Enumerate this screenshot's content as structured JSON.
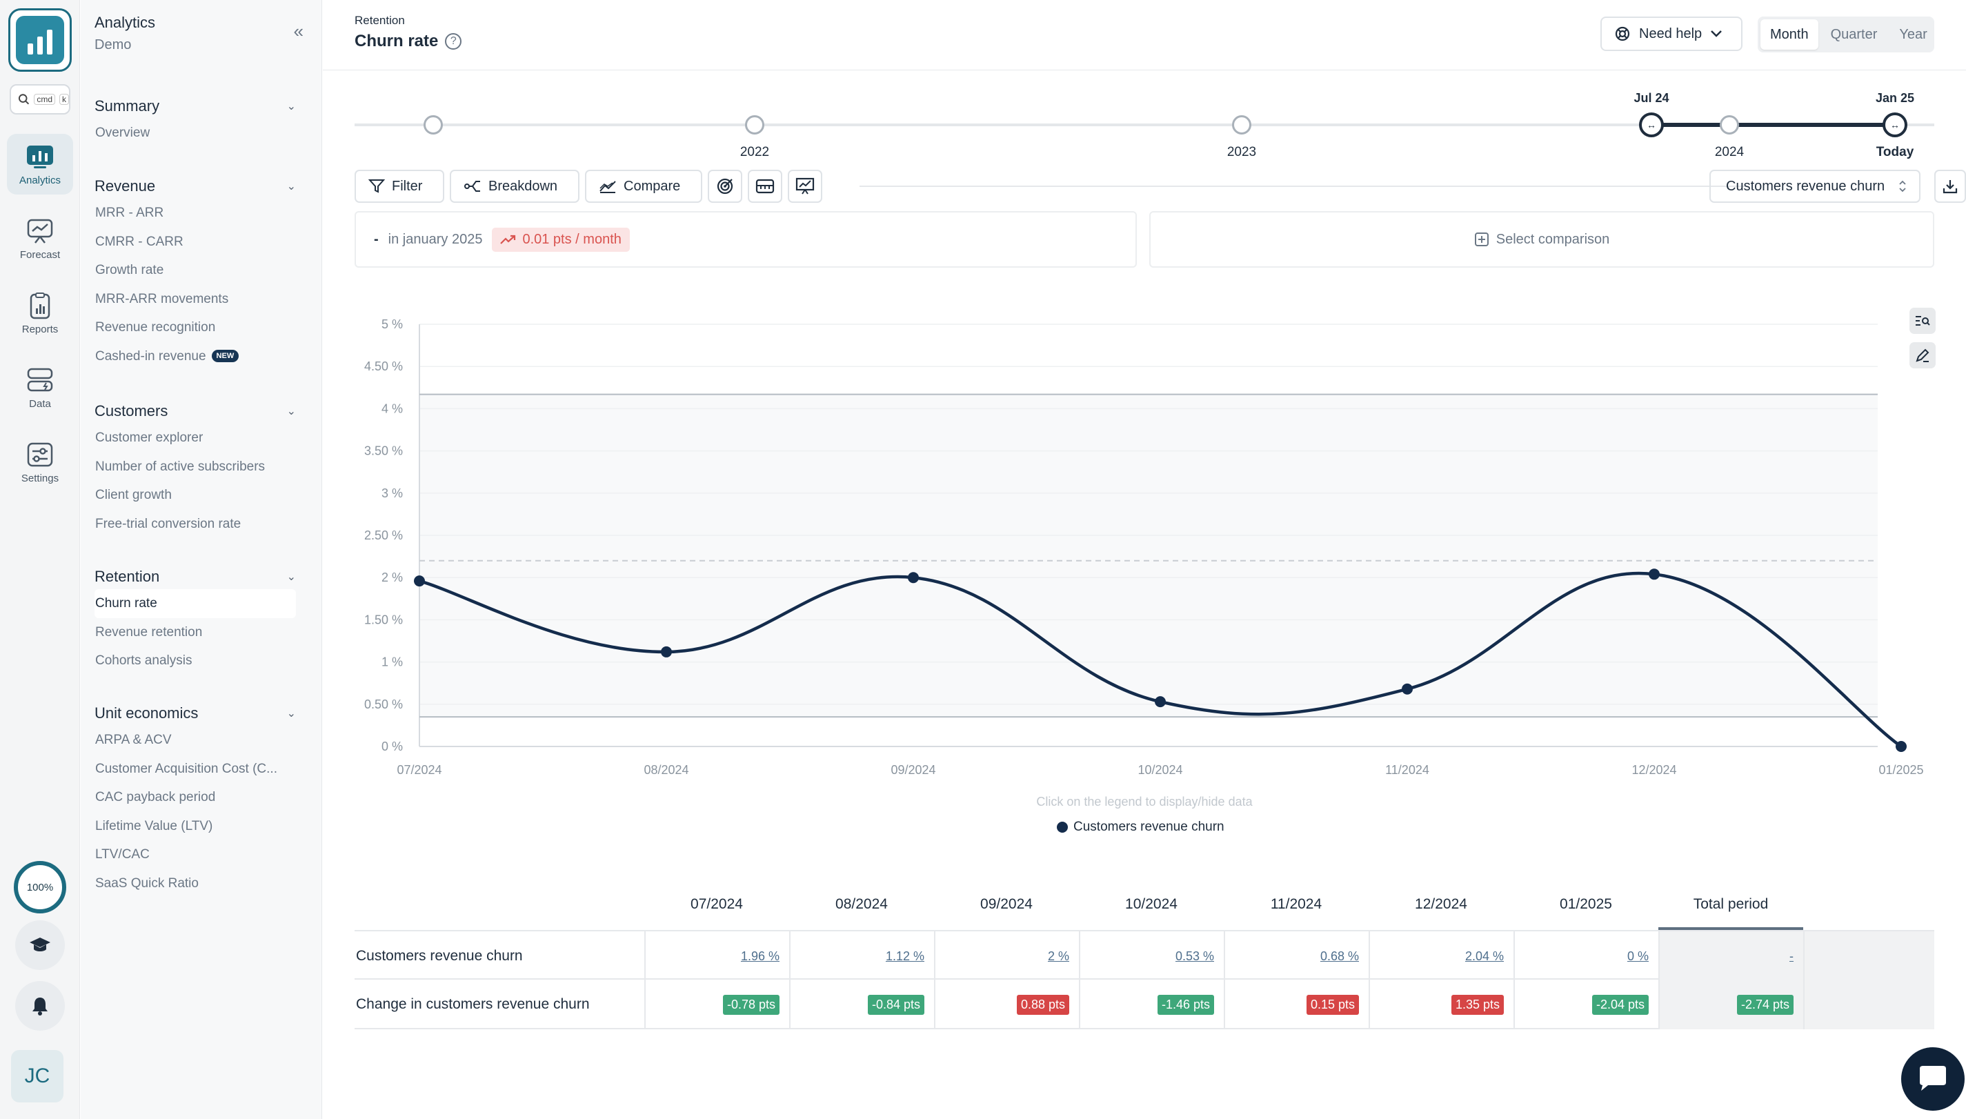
{
  "app": {
    "name": "Analytics",
    "workspace": "Demo",
    "search_shortcut": "cmd",
    "search_key": "k"
  },
  "rail": {
    "items": [
      {
        "label": "Analytics",
        "icon": "analytics-icon"
      },
      {
        "label": "Forecast",
        "icon": "forecast-icon"
      },
      {
        "label": "Reports",
        "icon": "reports-icon"
      },
      {
        "label": "Data",
        "icon": "data-icon"
      },
      {
        "label": "Settings",
        "icon": "settings-icon"
      }
    ],
    "progress": "100%",
    "avatar_initials": "JC"
  },
  "nav": {
    "sections": [
      {
        "title": "Summary",
        "items": [
          "Overview"
        ]
      },
      {
        "title": "Revenue",
        "items": [
          "MRR - ARR",
          "CMRR - CARR",
          "Growth rate",
          "MRR-ARR movements",
          "Revenue recognition",
          "Cashed-in revenue"
        ]
      },
      {
        "title": "Customers",
        "items": [
          "Customer explorer",
          "Number of active subscribers",
          "Client growth",
          "Free-trial conversion rate"
        ]
      },
      {
        "title": "Retention",
        "items": [
          "Churn rate",
          "Revenue retention",
          "Cohorts analysis"
        ]
      },
      {
        "title": "Unit economics",
        "items": [
          "ARPA & ACV",
          "Customer Acquisition Cost (C...",
          "CAC payback period",
          "Lifetime Value (LTV)",
          "LTV/CAC",
          "SaaS Quick Ratio"
        ]
      }
    ],
    "new_badge": "NEW",
    "active_item": "Churn rate"
  },
  "header": {
    "breadcrumb": "Retention",
    "title": "Churn rate",
    "help_label": "Need help",
    "periods": [
      "Month",
      "Quarter",
      "Year"
    ],
    "active_period": "Month"
  },
  "timeline": {
    "years": [
      "2022",
      "2023",
      "2024"
    ],
    "range_start": "Jul 24",
    "range_end": "Jan 25",
    "today_label": "Today"
  },
  "toolbar": {
    "filter": "Filter",
    "breakdown": "Breakdown",
    "compare": "Compare",
    "metric": "Customers revenue churn"
  },
  "summary": {
    "value": "-",
    "period_text": "in january 2025",
    "trend": "0.01 pts / month",
    "comparison_placeholder": "Select comparison"
  },
  "chart_data": {
    "type": "line",
    "x": [
      "07/2024",
      "08/2024",
      "09/2024",
      "10/2024",
      "11/2024",
      "12/2024",
      "01/2025"
    ],
    "series": [
      {
        "name": "Customers revenue churn",
        "values": [
          1.96,
          1.12,
          2.0,
          0.53,
          0.68,
          2.04,
          0.0
        ]
      }
    ],
    "y_ticks": [
      "0 %",
      "0.50 %",
      "1 %",
      "1.50 %",
      "2 %",
      "2.50 %",
      "3 %",
      "3.50 %",
      "4 %",
      "4.50 %",
      "5 %"
    ],
    "ylim": [
      0,
      5
    ],
    "reference_lines": [
      4.17,
      2.2,
      0.35
    ],
    "legend_hint": "Click on the legend to display/hide data",
    "grid": true,
    "series_color": "#142c4c"
  },
  "table": {
    "columns": [
      "07/2024",
      "08/2024",
      "09/2024",
      "10/2024",
      "11/2024",
      "12/2024",
      "01/2025",
      "Total period"
    ],
    "rows": [
      {
        "label": "Customers revenue churn",
        "cells": [
          "1.96 %",
          "1.12 %",
          "2 %",
          "0.53 %",
          "0.68 %",
          "2.04 %",
          "0 %",
          "-"
        ]
      },
      {
        "label": "Change in customers revenue churn",
        "cells": [
          "-0.78 pts",
          "-0.84 pts",
          "0.88 pts",
          "-1.46 pts",
          "0.15 pts",
          "1.35 pts",
          "-2.04 pts",
          "-2.74 pts"
        ],
        "signs": [
          "neg",
          "neg",
          "pos",
          "neg",
          "pos",
          "pos",
          "neg",
          "neg"
        ]
      }
    ]
  },
  "colors": {
    "accent": "#1c6b80",
    "negative_badge": "#3ea77a",
    "positive_badge": "#d64545",
    "line": "#142c4c"
  }
}
